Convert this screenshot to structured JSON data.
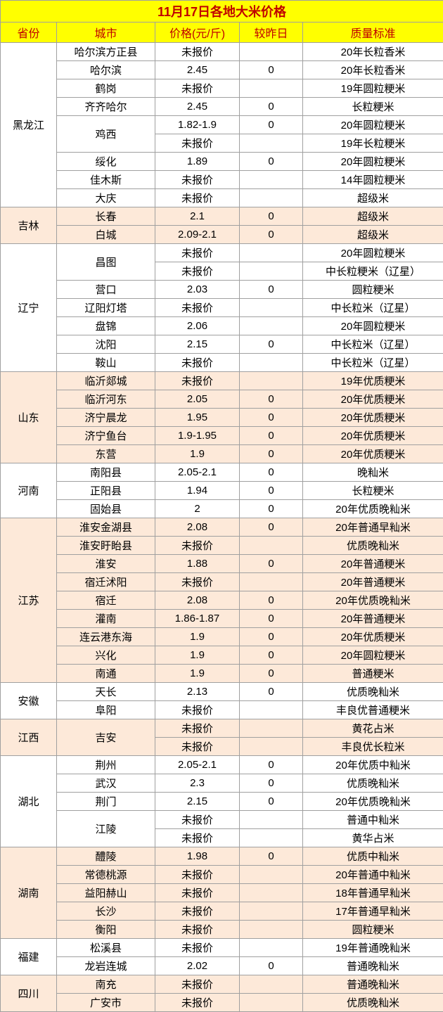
{
  "title": "11月17日各地大米价格",
  "headers": [
    "省份",
    "城市",
    "价格(元/斤)",
    "较昨日",
    "质量标准"
  ],
  "colors": {
    "title_bg": "#ffff00",
    "title_fg": "#c00000",
    "odd_bg": "#fde9d9",
    "even_bg": "#ffffff",
    "border": "#a0a0a0"
  },
  "provinces": [
    {
      "name": "黑龙江",
      "stripe": "even",
      "rows": [
        {
          "city": "哈尔滨方正县",
          "cityspan": 1,
          "price": "未报价",
          "chg": "",
          "std": "20年长粒香米"
        },
        {
          "city": "哈尔滨",
          "cityspan": 1,
          "price": "2.45",
          "chg": "0",
          "std": "20年长粒香米"
        },
        {
          "city": "鹤岗",
          "cityspan": 1,
          "price": "未报价",
          "chg": "",
          "std": "19年圆粒粳米"
        },
        {
          "city": "齐齐哈尔",
          "cityspan": 1,
          "price": "2.45",
          "chg": "0",
          "std": "长粒粳米"
        },
        {
          "city": "鸡西",
          "cityspan": 2,
          "price": "1.82-1.9",
          "chg": "0",
          "std": "20年圆粒粳米"
        },
        {
          "price": "未报价",
          "chg": "",
          "std": "19年长粒粳米"
        },
        {
          "city": "绥化",
          "cityspan": 1,
          "price": "1.89",
          "chg": "0",
          "std": "20年圆粒粳米"
        },
        {
          "city": "佳木斯",
          "cityspan": 1,
          "price": "未报价",
          "chg": "",
          "std": "14年圆粒粳米"
        },
        {
          "city": "大庆",
          "cityspan": 1,
          "price": "未报价",
          "chg": "",
          "std": "超级米"
        }
      ]
    },
    {
      "name": "吉林",
      "stripe": "odd",
      "rows": [
        {
          "city": "长春",
          "cityspan": 1,
          "price": "2.1",
          "chg": "0",
          "std": "超级米"
        },
        {
          "city": "白城",
          "cityspan": 1,
          "price": "2.09-2.1",
          "chg": "0",
          "std": "超级米"
        }
      ]
    },
    {
      "name": "辽宁",
      "stripe": "even",
      "rows": [
        {
          "city": "昌图",
          "cityspan": 2,
          "price": "未报价",
          "chg": "",
          "std": "20年圆粒粳米"
        },
        {
          "price": "未报价",
          "chg": "",
          "std": "中长粒粳米（辽星）"
        },
        {
          "city": "营口",
          "cityspan": 1,
          "price": "2.03",
          "chg": "0",
          "std": "圆粒粳米"
        },
        {
          "city": "辽阳灯塔",
          "cityspan": 1,
          "price": "未报价",
          "chg": "",
          "std": "中长粒米（辽星）"
        },
        {
          "city": "盘锦",
          "cityspan": 1,
          "price": "2.06",
          "chg": "",
          "std": "20年圆粒粳米"
        },
        {
          "city": "沈阳",
          "cityspan": 1,
          "price": "2.15",
          "chg": "0",
          "std": "中长粒米（辽星）"
        },
        {
          "city": "鞍山",
          "cityspan": 1,
          "price": "未报价",
          "chg": "",
          "std": "中长粒米（辽星）"
        }
      ]
    },
    {
      "name": "山东",
      "stripe": "odd",
      "rows": [
        {
          "city": "临沂郯城",
          "cityspan": 1,
          "price": "未报价",
          "chg": "",
          "std": "19年优质粳米"
        },
        {
          "city": "临沂河东",
          "cityspan": 1,
          "price": "2.05",
          "chg": "0",
          "std": "20年优质粳米"
        },
        {
          "city": "济宁晨龙",
          "cityspan": 1,
          "price": "1.95",
          "chg": "0",
          "std": "20年优质粳米"
        },
        {
          "city": "济宁鱼台",
          "cityspan": 1,
          "price": "1.9-1.95",
          "chg": "0",
          "std": "20年优质粳米"
        },
        {
          "city": "东营",
          "cityspan": 1,
          "price": "1.9",
          "chg": "0",
          "std": "20年优质粳米"
        }
      ]
    },
    {
      "name": "河南",
      "stripe": "even",
      "rows": [
        {
          "city": "南阳县",
          "cityspan": 1,
          "price": "2.05-2.1",
          "chg": "0",
          "std": "晚籼米"
        },
        {
          "city": "正阳县",
          "cityspan": 1,
          "price": "1.94",
          "chg": "0",
          "std": "长粒粳米"
        },
        {
          "city": "固始县",
          "cityspan": 1,
          "price": "2",
          "chg": "0",
          "std": "20年优质晚籼米"
        }
      ]
    },
    {
      "name": "江苏",
      "stripe": "odd",
      "rows": [
        {
          "city": "淮安金湖县",
          "cityspan": 1,
          "price": "2.08",
          "chg": "0",
          "std": "20年普通早籼米"
        },
        {
          "city": "淮安盱眙县",
          "cityspan": 1,
          "price": "未报价",
          "chg": "",
          "std": "优质晚籼米"
        },
        {
          "city": "淮安",
          "cityspan": 1,
          "price": "1.88",
          "chg": "0",
          "std": "20年普通粳米"
        },
        {
          "city": "宿迁沭阳",
          "cityspan": 1,
          "price": "未报价",
          "chg": "",
          "std": "20年普通粳米"
        },
        {
          "city": "宿迁",
          "cityspan": 1,
          "price": "2.08",
          "chg": "0",
          "std": "20年优质晚籼米"
        },
        {
          "city": "灌南",
          "cityspan": 1,
          "price": "1.86-1.87",
          "chg": "0",
          "std": "20年普通粳米"
        },
        {
          "city": "连云港东海",
          "cityspan": 1,
          "price": "1.9",
          "chg": "0",
          "std": "20年优质粳米"
        },
        {
          "city": "兴化",
          "cityspan": 1,
          "price": "1.9",
          "chg": "0",
          "std": "20年圆粒粳米"
        },
        {
          "city": "南通",
          "cityspan": 1,
          "price": "1.9",
          "chg": "0",
          "std": "普通粳米"
        }
      ]
    },
    {
      "name": "安徽",
      "stripe": "even",
      "rows": [
        {
          "city": "天长",
          "cityspan": 1,
          "price": "2.13",
          "chg": "0",
          "std": "优质晚籼米"
        },
        {
          "city": "阜阳",
          "cityspan": 1,
          "price": "未报价",
          "chg": "",
          "std": "丰良优普通粳米"
        }
      ]
    },
    {
      "name": "江西",
      "stripe": "odd",
      "rows": [
        {
          "city": "吉安",
          "cityspan": 2,
          "price": "未报价",
          "chg": "",
          "std": "黄花占米"
        },
        {
          "price": "未报价",
          "chg": "",
          "std": "丰良优长粒米"
        }
      ]
    },
    {
      "name": "湖北",
      "stripe": "even",
      "rows": [
        {
          "city": "荆州",
          "cityspan": 1,
          "price": "2.05-2.1",
          "chg": "0",
          "std": "20年优质中籼米"
        },
        {
          "city": "武汉",
          "cityspan": 1,
          "price": "2.3",
          "chg": "0",
          "std": "优质晚籼米"
        },
        {
          "city": "荆门",
          "cityspan": 1,
          "price": "2.15",
          "chg": "0",
          "std": "20年优质晚籼米"
        },
        {
          "city": "江陵",
          "cityspan": 2,
          "price": "未报价",
          "chg": "",
          "std": "普通中籼米"
        },
        {
          "price": "未报价",
          "chg": "",
          "std": "黄华占米"
        }
      ]
    },
    {
      "name": "湖南",
      "stripe": "odd",
      "rows": [
        {
          "city": "醴陵",
          "cityspan": 1,
          "price": "1.98",
          "chg": "0",
          "std": "优质中籼米"
        },
        {
          "city": "常德桃源",
          "cityspan": 1,
          "price": "未报价",
          "chg": "",
          "std": "20年普通中籼米"
        },
        {
          "city": "益阳赫山",
          "cityspan": 1,
          "price": "未报价",
          "chg": "",
          "std": "18年普通早籼米"
        },
        {
          "city": "长沙",
          "cityspan": 1,
          "price": "未报价",
          "chg": "",
          "std": "17年普通早籼米"
        },
        {
          "city": "衡阳",
          "cityspan": 1,
          "price": "未报价",
          "chg": "",
          "std": "圆粒粳米"
        }
      ]
    },
    {
      "name": "福建",
      "stripe": "even",
      "rows": [
        {
          "city": "松溪县",
          "cityspan": 1,
          "price": "未报价",
          "chg": "",
          "std": "19年普通晚籼米"
        },
        {
          "city": "龙岩连城",
          "cityspan": 1,
          "price": "2.02",
          "chg": "0",
          "std": "普通晚籼米"
        }
      ]
    },
    {
      "name": "四川",
      "stripe": "odd",
      "rows": [
        {
          "city": "南充",
          "cityspan": 1,
          "price": "未报价",
          "chg": "",
          "std": "普通晚籼米"
        },
        {
          "city": "广安市",
          "cityspan": 1,
          "price": "未报价",
          "chg": "",
          "std": "优质晚籼米"
        }
      ]
    }
  ]
}
